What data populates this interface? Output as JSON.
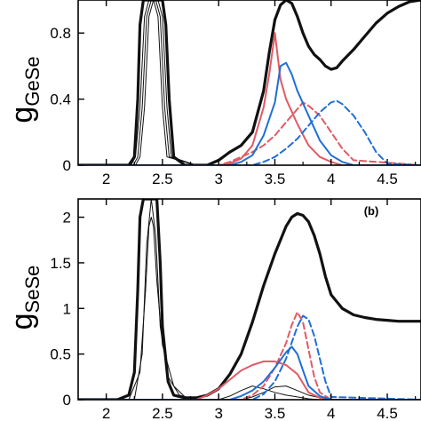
{
  "colors": {
    "black": "#111111",
    "red": "#e15a63",
    "blue": "#1f6fd6",
    "axis": "#000000"
  },
  "chart_data": [
    {
      "type": "line",
      "panel": "a",
      "ylabel_main": "g",
      "ylabel_sub": "GeSe",
      "xlim": [
        1.75,
        4.8
      ],
      "ylim": [
        0,
        1.0
      ],
      "xticks": [
        "2",
        "2.5",
        "3",
        "3.5",
        "4",
        "4.5"
      ],
      "xtick_values": [
        2,
        2.5,
        3,
        3.5,
        4,
        4.5
      ],
      "yticks": [
        "0",
        "0.4",
        "0.8"
      ],
      "ytick_values": [
        0,
        0.4,
        0.8
      ],
      "grid": false,
      "legend": "none",
      "series": [
        {
          "style": "thick-black",
          "x": [
            1.75,
            2.2,
            2.25,
            2.28,
            2.3,
            2.33,
            2.36,
            2.5,
            2.53,
            2.56,
            2.6,
            2.7,
            2.8,
            2.9,
            3.0,
            3.1,
            3.2,
            3.3,
            3.4,
            3.45,
            3.5,
            3.55,
            3.6,
            3.65,
            3.7,
            3.75,
            3.8,
            3.85,
            3.9,
            3.95,
            4.0,
            4.05,
            4.1,
            4.2,
            4.3,
            4.4,
            4.5,
            4.6,
            4.7,
            4.8
          ],
          "y": [
            0,
            0,
            0.05,
            0.4,
            0.85,
            1.0,
            1.0,
            1.0,
            0.85,
            0.4,
            0.05,
            0,
            0,
            0,
            0.03,
            0.08,
            0.12,
            0.2,
            0.45,
            0.68,
            0.88,
            0.97,
            1.0,
            0.98,
            0.9,
            0.8,
            0.72,
            0.67,
            0.64,
            0.6,
            0.58,
            0.59,
            0.63,
            0.7,
            0.78,
            0.86,
            0.92,
            0.96,
            0.99,
            1.0
          ]
        },
        {
          "style": "thin-black",
          "x": [
            1.75,
            2.24,
            2.28,
            2.32,
            2.36,
            2.4,
            2.44,
            2.48,
            2.52,
            2.56,
            2.8,
            4.8
          ],
          "y": [
            0,
            0,
            0.05,
            0.35,
            0.9,
            1.0,
            1.0,
            0.9,
            0.35,
            0.05,
            0,
            0
          ]
        },
        {
          "style": "thin-black",
          "x": [
            1.75,
            2.22,
            2.26,
            2.3,
            2.34,
            2.38,
            2.42,
            2.46,
            2.5,
            2.54,
            2.8,
            4.8
          ],
          "y": [
            0,
            0,
            0.05,
            0.35,
            0.9,
            1.0,
            1.0,
            0.9,
            0.35,
            0.05,
            0,
            0
          ]
        },
        {
          "style": "thin-black",
          "x": [
            1.75,
            2.26,
            2.3,
            2.34,
            2.38,
            2.42,
            2.46,
            2.5,
            2.54,
            2.58,
            2.8,
            4.8
          ],
          "y": [
            0,
            0,
            0.05,
            0.35,
            0.9,
            1.0,
            1.0,
            0.9,
            0.35,
            0.05,
            0,
            0
          ]
        },
        {
          "style": "red-solid",
          "x": [
            1.75,
            3.0,
            3.1,
            3.2,
            3.3,
            3.4,
            3.45,
            3.5,
            3.55,
            3.6,
            3.7,
            3.8,
            3.9,
            4.0,
            4.1,
            4.8
          ],
          "y": [
            0,
            0,
            0.01,
            0.04,
            0.12,
            0.35,
            0.55,
            0.8,
            0.52,
            0.4,
            0.25,
            0.12,
            0.05,
            0.02,
            0,
            0
          ]
        },
        {
          "style": "red-dashed",
          "x": [
            1.75,
            3.0,
            3.1,
            3.2,
            3.3,
            3.4,
            3.5,
            3.6,
            3.7,
            3.75,
            3.8,
            3.9,
            4.0,
            4.1,
            4.2,
            4.8
          ],
          "y": [
            0,
            0,
            0.02,
            0.05,
            0.08,
            0.12,
            0.18,
            0.26,
            0.34,
            0.38,
            0.36,
            0.3,
            0.2,
            0.1,
            0.03,
            0
          ]
        },
        {
          "style": "blue-solid",
          "x": [
            1.75,
            3.1,
            3.2,
            3.3,
            3.4,
            3.5,
            3.55,
            3.6,
            3.65,
            3.7,
            3.8,
            3.9,
            4.0,
            4.1,
            4.2,
            4.8
          ],
          "y": [
            0,
            0,
            0.02,
            0.06,
            0.18,
            0.38,
            0.6,
            0.62,
            0.55,
            0.45,
            0.3,
            0.15,
            0.06,
            0.02,
            0,
            0
          ]
        },
        {
          "style": "blue-dashed",
          "x": [
            1.75,
            3.3,
            3.4,
            3.5,
            3.6,
            3.7,
            3.8,
            3.9,
            4.0,
            4.05,
            4.1,
            4.2,
            4.3,
            4.4,
            4.5,
            4.8
          ],
          "y": [
            0,
            0,
            0.02,
            0.05,
            0.1,
            0.16,
            0.24,
            0.32,
            0.38,
            0.39,
            0.37,
            0.3,
            0.2,
            0.08,
            0.01,
            0
          ]
        }
      ]
    },
    {
      "type": "line",
      "panel": "b",
      "tag": "(b)",
      "ylabel_main": "g",
      "ylabel_sub": "SeSe",
      "xlim": [
        1.75,
        4.8
      ],
      "ylim": [
        0,
        2.2
      ],
      "xticks": [
        "2",
        "2.5",
        "3",
        "3.5",
        "4",
        "4.5"
      ],
      "xtick_values": [
        2,
        2.5,
        3,
        3.5,
        4,
        4.5
      ],
      "yticks": [
        "0",
        "0.5",
        "1",
        "1.5",
        "2"
      ],
      "ytick_values": [
        0,
        0.5,
        1,
        1.5,
        2
      ],
      "grid": false,
      "legend": "none",
      "series": [
        {
          "style": "thick-black",
          "x": [
            1.75,
            2.1,
            2.2,
            2.25,
            2.28,
            2.3,
            2.33,
            2.45,
            2.48,
            2.5,
            2.55,
            2.6,
            2.7,
            2.8,
            2.9,
            3.0,
            3.1,
            3.2,
            3.3,
            3.4,
            3.5,
            3.6,
            3.65,
            3.7,
            3.75,
            3.8,
            3.85,
            3.9,
            3.95,
            4.0,
            4.1,
            4.2,
            4.3,
            4.4,
            4.5,
            4.6,
            4.7,
            4.8
          ],
          "y": [
            0,
            0,
            0.05,
            0.3,
            1.2,
            2.0,
            2.2,
            2.2,
            1.5,
            0.8,
            0.2,
            0.05,
            0.02,
            0.02,
            0.05,
            0.12,
            0.28,
            0.5,
            0.85,
            1.25,
            1.6,
            1.9,
            2.0,
            2.04,
            2.02,
            1.95,
            1.8,
            1.6,
            1.35,
            1.15,
            1.0,
            0.93,
            0.9,
            0.88,
            0.87,
            0.86,
            0.86,
            0.86
          ]
        },
        {
          "style": "thin-black",
          "x": [
            1.75,
            2.2,
            2.3,
            2.35,
            2.38,
            2.4,
            2.42,
            2.45,
            2.5,
            2.6,
            2.7,
            2.8,
            4.8
          ],
          "y": [
            0,
            0,
            0.3,
            1.2,
            1.9,
            2.0,
            1.9,
            1.3,
            0.6,
            0.15,
            0.03,
            0,
            0
          ]
        },
        {
          "style": "thin-black",
          "x": [
            1.75,
            2.25,
            2.32,
            2.36,
            2.4,
            2.44,
            2.48,
            2.55,
            2.65,
            2.8,
            4.8
          ],
          "y": [
            0,
            0,
            0.5,
            1.7,
            2.2,
            1.8,
            0.8,
            0.25,
            0.05,
            0,
            0
          ]
        },
        {
          "style": "thin-black",
          "x": [
            1.75,
            3.0,
            3.1,
            3.2,
            3.3,
            3.4,
            3.5,
            3.6,
            3.7,
            3.8,
            3.9,
            4.0,
            4.8
          ],
          "y": [
            0,
            0,
            0.04,
            0.1,
            0.15,
            0.12,
            0.08,
            0.05,
            0.03,
            0.01,
            0,
            0,
            0
          ]
        },
        {
          "style": "thin-black",
          "x": [
            1.75,
            3.2,
            3.3,
            3.4,
            3.5,
            3.6,
            3.7,
            3.8,
            3.9,
            4.0,
            4.8
          ],
          "y": [
            0,
            0,
            0.03,
            0.08,
            0.14,
            0.15,
            0.1,
            0.05,
            0.02,
            0,
            0
          ]
        },
        {
          "style": "red-solid",
          "x": [
            1.75,
            2.8,
            2.9,
            3.0,
            3.1,
            3.2,
            3.3,
            3.4,
            3.5,
            3.6,
            3.7,
            3.75,
            3.8,
            3.9,
            4.0,
            4.8
          ],
          "y": [
            0,
            0,
            0.05,
            0.12,
            0.22,
            0.32,
            0.38,
            0.42,
            0.42,
            0.38,
            0.28,
            0.18,
            0.08,
            0.02,
            0,
            0
          ]
        },
        {
          "style": "red-dashed",
          "x": [
            1.75,
            3.2,
            3.3,
            3.4,
            3.5,
            3.6,
            3.65,
            3.7,
            3.75,
            3.8,
            3.85,
            3.9,
            4.0,
            4.8
          ],
          "y": [
            0,
            0,
            0.05,
            0.15,
            0.35,
            0.62,
            0.82,
            0.96,
            0.85,
            0.55,
            0.25,
            0.08,
            0,
            0
          ]
        },
        {
          "style": "blue-solid",
          "x": [
            1.75,
            3.1,
            3.2,
            3.3,
            3.4,
            3.5,
            3.6,
            3.65,
            3.7,
            3.75,
            3.8,
            3.9,
            4.0,
            4.8
          ],
          "y": [
            0,
            0,
            0.04,
            0.1,
            0.2,
            0.35,
            0.52,
            0.58,
            0.5,
            0.32,
            0.15,
            0.04,
            0,
            0
          ]
        },
        {
          "style": "blue-dashed",
          "x": [
            1.75,
            3.3,
            3.4,
            3.5,
            3.6,
            3.7,
            3.75,
            3.8,
            3.85,
            3.9,
            3.95,
            4.0,
            4.8
          ],
          "y": [
            0,
            0,
            0.06,
            0.2,
            0.45,
            0.8,
            0.92,
            0.88,
            0.7,
            0.45,
            0.2,
            0.03,
            0
          ]
        }
      ]
    }
  ]
}
